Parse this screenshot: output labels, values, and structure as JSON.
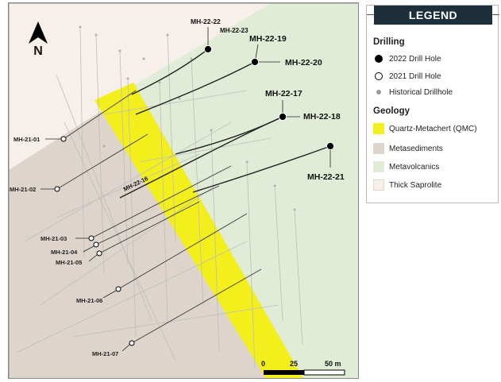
{
  "legend": {
    "title": "LEGEND",
    "drilling_heading": "Drilling",
    "drilling": [
      {
        "symbol": "filled-black-circle",
        "label": "2022 Drill Hole"
      },
      {
        "symbol": "open-circle",
        "label": "2021 Drill Hole"
      },
      {
        "symbol": "small-grey-dot",
        "label": "Historical Drillhole"
      }
    ],
    "geology_heading": "Geology",
    "geology": [
      {
        "color": "#f2ef1c",
        "label": "Quartz-Metachert (QMC)"
      },
      {
        "color": "#ddd5cc",
        "label": "Metasediments"
      },
      {
        "color": "#e1ecd6",
        "label": "Metavolcanics"
      },
      {
        "color": "#f7efe9",
        "label": "Thick Saprolite"
      }
    ]
  },
  "map": {
    "north_label": "N",
    "colors": {
      "metavolcanics": "#e1ecd6",
      "metasediments": "#ddd5cc",
      "saprolite": "#f7efe9",
      "qmc": "#f2ef1c"
    },
    "holes_2022": [
      "MH-22-22",
      "MH-22-23",
      "MH-22-19",
      "MH-22-20",
      "MH-22-17",
      "MH-22-18",
      "MH-22-21",
      "MH-22-16"
    ],
    "holes_2021": [
      "MH-21-01",
      "MH-21-02",
      "MH-21-03",
      "MH-21-04",
      "MH-21-05",
      "MH-21-06",
      "MH-21-07"
    ],
    "scale_bar": {
      "ticks": [
        "0",
        "25",
        "50 m"
      ]
    }
  }
}
